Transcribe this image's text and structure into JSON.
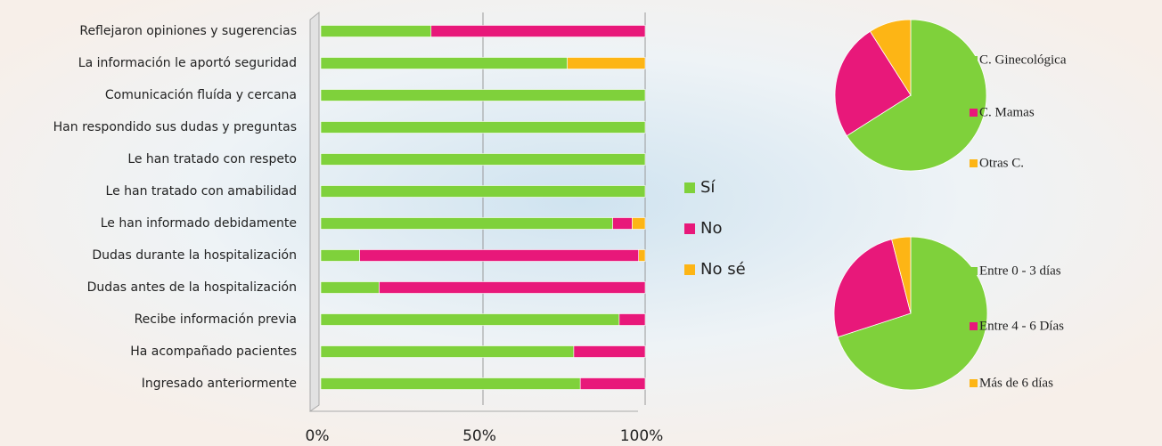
{
  "chart_data": [
    {
      "type": "stacked-bar-horizontal",
      "categories": [
        "Reflejaron opiniones y sugerencias",
        "La información le aportó seguridad",
        "Comunicación fluída y cercana",
        "Han respondido sus dudas y preguntas",
        "Le han tratado con respeto",
        "Le han tratado con amabilidad",
        "Le han informado debidamente",
        "Dudas durante la hospitalización",
        "Dudas antes de la hospitalización",
        "Recibe información previa",
        "Ha acompañado pacientes",
        "Ingresado anteriormente"
      ],
      "series": [
        {
          "name": "Sí",
          "color": "#7fd13b",
          "values": [
            34,
            76,
            100,
            100,
            100,
            100,
            90,
            12,
            18,
            92,
            78,
            80
          ]
        },
        {
          "name": "No",
          "color": "#e8187a",
          "values": [
            66,
            0,
            0,
            0,
            0,
            0,
            6,
            86,
            82,
            8,
            22,
            20
          ]
        },
        {
          "name": "No sé",
          "color": "#fdb515",
          "values": [
            0,
            24,
            0,
            0,
            0,
            0,
            4,
            2,
            0,
            0,
            0,
            0
          ]
        }
      ],
      "xlim": [
        0,
        100
      ],
      "xticks": [
        {
          "value": 0,
          "label": "0%"
        },
        {
          "value": 50,
          "label": "50%"
        },
        {
          "value": 100,
          "label": "100%"
        }
      ],
      "grid": true,
      "legend": "right"
    },
    {
      "type": "pie",
      "categories": [
        "C. Ginecológica",
        "C. Mamas",
        "Otras C."
      ],
      "values": [
        66,
        25,
        9
      ],
      "colors": [
        "#7fd13b",
        "#e8187a",
        "#fdb515"
      ],
      "legend": "right"
    },
    {
      "type": "pie",
      "categories": [
        "Entre 0 - 3 días",
        "Entre 4 - 6 Días",
        "Más de 6 días"
      ],
      "values": [
        70,
        26,
        4
      ],
      "colors": [
        "#7fd13b",
        "#e8187a",
        "#fdb515"
      ],
      "legend": "right"
    }
  ]
}
